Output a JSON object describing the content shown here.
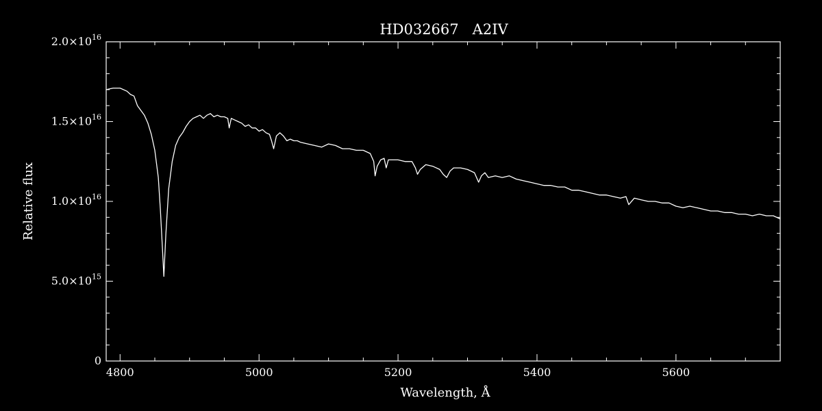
{
  "chart_data": {
    "type": "line",
    "title": "HD032667   A2IV",
    "xlabel": "Wavelength, Å",
    "ylabel": "Relative flux",
    "xlim": [
      4780,
      5750
    ],
    "ylim": [
      0,
      2e+16
    ],
    "x_ticks": [
      4800,
      5000,
      5200,
      5400,
      5600
    ],
    "x_tick_labels": [
      "4800",
      "5000",
      "5200",
      "5400",
      "5600"
    ],
    "y_ticks": [
      {
        "value": 0,
        "mantissa": "0",
        "exponent": ""
      },
      {
        "value": 5000000000000000.0,
        "mantissa": "5.0×10",
        "exponent": "15"
      },
      {
        "value": 1e+16,
        "mantissa": "1.0×10",
        "exponent": "16"
      },
      {
        "value": 1.5e+16,
        "mantissa": "1.5×10",
        "exponent": "16"
      },
      {
        "value": 2e+16,
        "mantissa": "2.0×10",
        "exponent": "16"
      }
    ],
    "grid": false,
    "colors": {
      "background": "#000000",
      "foreground": "#ffffff"
    },
    "series": [
      {
        "x": [
          4780,
          4790,
          4800,
          4810,
          4815,
          4820,
          4825,
          4830,
          4835,
          4840,
          4845,
          4850,
          4855,
          4858,
          4861,
          4863,
          4866,
          4870,
          4875,
          4880,
          4885,
          4890,
          4895,
          4900,
          4905,
          4910,
          4915,
          4920,
          4925,
          4930,
          4935,
          4940,
          4945,
          4950,
          4955,
          4957,
          4960,
          4965,
          4970,
          4975,
          4980,
          4985,
          4990,
          4995,
          5000,
          5005,
          5010,
          5015,
          5018,
          5021,
          5025,
          5030,
          5035,
          5040,
          5045,
          5050,
          5055,
          5060,
          5070,
          5080,
          5090,
          5100,
          5110,
          5120,
          5130,
          5140,
          5150,
          5160,
          5165,
          5167,
          5170,
          5175,
          5180,
          5183,
          5186,
          5190,
          5200,
          5210,
          5220,
          5225,
          5228,
          5232,
          5240,
          5250,
          5260,
          5265,
          5270,
          5275,
          5280,
          5290,
          5300,
          5310,
          5316,
          5320,
          5325,
          5330,
          5340,
          5350,
          5360,
          5370,
          5380,
          5390,
          5400,
          5410,
          5420,
          5430,
          5440,
          5450,
          5460,
          5470,
          5480,
          5490,
          5500,
          5510,
          5520,
          5528,
          5532,
          5540,
          5550,
          5560,
          5570,
          5580,
          5590,
          5600,
          5610,
          5620,
          5630,
          5640,
          5650,
          5660,
          5670,
          5680,
          5690,
          5700,
          5710,
          5720,
          5730,
          5740,
          5750
        ],
        "y": [
          1.7e+16,
          1.71e+16,
          1.71e+16,
          1.69e+16,
          1.67e+16,
          1.66e+16,
          1.6e+16,
          1.57e+16,
          1.54e+16,
          1.49e+16,
          1.42e+16,
          1.32e+16,
          1.15e+16,
          9500000000000000.0,
          7000000000000000.0,
          5300000000000000.0,
          8000000000000000.0,
          1.08e+16,
          1.25e+16,
          1.35e+16,
          1.4e+16,
          1.43e+16,
          1.47e+16,
          1.5e+16,
          1.52e+16,
          1.53e+16,
          1.54e+16,
          1.52e+16,
          1.54e+16,
          1.55e+16,
          1.53e+16,
          1.54e+16,
          1.53e+16,
          1.53e+16,
          1.52e+16,
          1.46e+16,
          1.52e+16,
          1.51e+16,
          1.5e+16,
          1.49e+16,
          1.47e+16,
          1.48e+16,
          1.46e+16,
          1.46e+16,
          1.44e+16,
          1.45e+16,
          1.43e+16,
          1.42e+16,
          1.38e+16,
          1.33e+16,
          1.41e+16,
          1.43e+16,
          1.41e+16,
          1.38e+16,
          1.39e+16,
          1.38e+16,
          1.38e+16,
          1.37e+16,
          1.36e+16,
          1.35e+16,
          1.34e+16,
          1.36e+16,
          1.35e+16,
          1.33e+16,
          1.33e+16,
          1.32e+16,
          1.32e+16,
          1.3e+16,
          1.25e+16,
          1.16e+16,
          1.22e+16,
          1.26e+16,
          1.27e+16,
          1.21e+16,
          1.26e+16,
          1.26e+16,
          1.26e+16,
          1.25e+16,
          1.25e+16,
          1.21e+16,
          1.17e+16,
          1.2e+16,
          1.23e+16,
          1.22e+16,
          1.2e+16,
          1.17e+16,
          1.15e+16,
          1.19e+16,
          1.21e+16,
          1.21e+16,
          1.2e+16,
          1.18e+16,
          1.12e+16,
          1.16e+16,
          1.18e+16,
          1.15e+16,
          1.16e+16,
          1.15e+16,
          1.16e+16,
          1.14e+16,
          1.13e+16,
          1.12e+16,
          1.11e+16,
          1.1e+16,
          1.1e+16,
          1.09e+16,
          1.09e+16,
          1.07e+16,
          1.07e+16,
          1.06e+16,
          1.05e+16,
          1.04e+16,
          1.04e+16,
          1.03e+16,
          1.02e+16,
          1.03e+16,
          9800000000000000.0,
          1.02e+16,
          1.01e+16,
          1e+16,
          1e+16,
          9900000000000000.0,
          9900000000000000.0,
          9700000000000000.0,
          9600000000000000.0,
          9700000000000000.0,
          9600000000000000.0,
          9500000000000000.0,
          9400000000000000.0,
          9400000000000000.0,
          9300000000000000.0,
          9300000000000000.0,
          9200000000000000.0,
          9200000000000000.0,
          9100000000000000.0,
          9200000000000000.0,
          9100000000000000.0,
          9100000000000000.0,
          8900000000000000.0
        ]
      }
    ]
  }
}
